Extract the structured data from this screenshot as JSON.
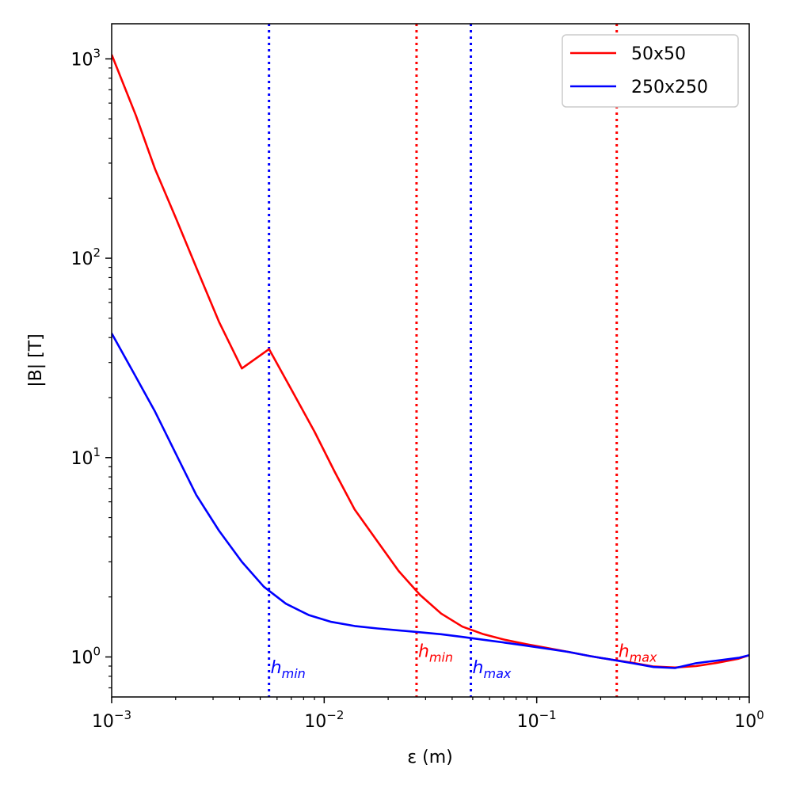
{
  "chart_data": {
    "type": "line",
    "xlabel": "ε (m)",
    "ylabel": "|B| [T]",
    "xscale": "log",
    "yscale": "log",
    "xlim": [
      0.001,
      1
    ],
    "ylim": [
      0.63,
      1500
    ],
    "x_ticks": [
      {
        "value": 0.001,
        "base": "10",
        "exp": "−3"
      },
      {
        "value": 0.01,
        "base": "10",
        "exp": "−2"
      },
      {
        "value": 0.1,
        "base": "10",
        "exp": "−1"
      },
      {
        "value": 1,
        "base": "10",
        "exp": "0"
      }
    ],
    "y_ticks": [
      {
        "value": 1,
        "base": "10",
        "exp": "0"
      },
      {
        "value": 10,
        "base": "10",
        "exp": "1"
      },
      {
        "value": 100,
        "base": "10",
        "exp": "2"
      },
      {
        "value": 1000,
        "base": "10",
        "exp": "3"
      }
    ],
    "grid": false,
    "legend_position": "top-right",
    "series": [
      {
        "name": "50x50",
        "color": "#ff0000",
        "points": [
          [
            0.001,
            1050
          ],
          [
            0.0013,
            520
          ],
          [
            0.0016,
            280
          ],
          [
            0.002,
            160
          ],
          [
            0.0025,
            90
          ],
          [
            0.0032,
            48
          ],
          [
            0.0041,
            28
          ],
          [
            0.0055,
            35
          ],
          [
            0.007,
            22
          ],
          [
            0.009,
            13.5
          ],
          [
            0.0112,
            8.5
          ],
          [
            0.0139,
            5.5
          ],
          [
            0.0178,
            3.8
          ],
          [
            0.0224,
            2.7
          ],
          [
            0.0282,
            2.05
          ],
          [
            0.0355,
            1.65
          ],
          [
            0.0447,
            1.42
          ],
          [
            0.0562,
            1.3
          ],
          [
            0.0708,
            1.22
          ],
          [
            0.0891,
            1.16
          ],
          [
            0.112,
            1.11
          ],
          [
            0.141,
            1.06
          ],
          [
            0.178,
            1.01
          ],
          [
            0.224,
            0.97
          ],
          [
            0.282,
            0.935
          ],
          [
            0.355,
            0.895
          ],
          [
            0.447,
            0.885
          ],
          [
            0.562,
            0.9
          ],
          [
            0.708,
            0.935
          ],
          [
            0.891,
            0.98
          ],
          [
            1.0,
            1.02
          ]
        ]
      },
      {
        "name": "250x250",
        "color": "#0000ff",
        "points": [
          [
            0.001,
            42
          ],
          [
            0.00126,
            27
          ],
          [
            0.0016,
            17
          ],
          [
            0.002,
            10.5
          ],
          [
            0.0025,
            6.5
          ],
          [
            0.0032,
            4.3
          ],
          [
            0.0041,
            3.0
          ],
          [
            0.0052,
            2.25
          ],
          [
            0.0066,
            1.85
          ],
          [
            0.0085,
            1.62
          ],
          [
            0.0108,
            1.5
          ],
          [
            0.0139,
            1.43
          ],
          [
            0.0178,
            1.39
          ],
          [
            0.0224,
            1.36
          ],
          [
            0.0282,
            1.33
          ],
          [
            0.0355,
            1.3
          ],
          [
            0.0447,
            1.26
          ],
          [
            0.0562,
            1.22
          ],
          [
            0.0708,
            1.18
          ],
          [
            0.0891,
            1.14
          ],
          [
            0.112,
            1.1
          ],
          [
            0.141,
            1.06
          ],
          [
            0.178,
            1.01
          ],
          [
            0.224,
            0.97
          ],
          [
            0.282,
            0.93
          ],
          [
            0.355,
            0.89
          ],
          [
            0.447,
            0.88
          ],
          [
            0.562,
            0.93
          ],
          [
            0.708,
            0.96
          ],
          [
            0.891,
            0.99
          ],
          [
            1.0,
            1.02
          ]
        ]
      }
    ],
    "vlines": [
      {
        "x": 0.0055,
        "color": "#0000ff",
        "label_base": "h",
        "label_sub": "min",
        "label_y": 0.83
      },
      {
        "x": 0.049,
        "color": "#0000ff",
        "label_base": "h",
        "label_sub": "max",
        "label_y": 0.83
      },
      {
        "x": 0.0272,
        "color": "#ff0000",
        "label_base": "h",
        "label_sub": "min",
        "label_y": 1.0
      },
      {
        "x": 0.238,
        "color": "#ff0000",
        "label_base": "h",
        "label_sub": "max",
        "label_y": 1.0
      }
    ]
  }
}
